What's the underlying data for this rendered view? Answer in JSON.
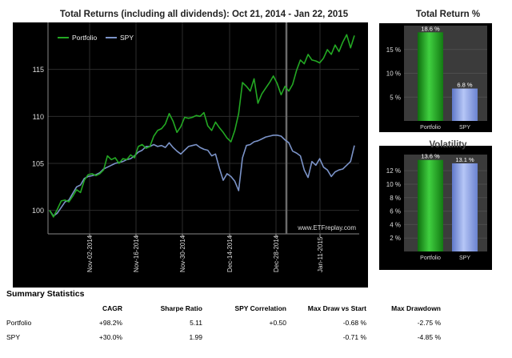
{
  "chart_data": [
    {
      "type": "line",
      "title": "Total Returns (including all dividends): Oct 21, 2014 - Jan 22, 2015",
      "xlabel": "",
      "ylabel": "",
      "x_tick_labels": [
        "Nov-02-2014",
        "Nov-16-2014",
        "Nov-30-2014",
        "Dec-14-2014",
        "Dec-28-2014",
        "Jan-11-2015"
      ],
      "y_ticks": [
        100,
        105,
        110,
        115
      ],
      "ylim": [
        97.5,
        120
      ],
      "grid": true,
      "legend": "top-left",
      "watermark": "www.ETFreplay.com",
      "series": [
        {
          "name": "Portfolio",
          "color": "#23a823",
          "values": [
            100.0,
            99.3,
            100.1,
            101.0,
            101.1,
            100.9,
            101.5,
            102.2,
            101.9,
            103.2,
            103.8,
            103.9,
            103.7,
            103.9,
            104.3,
            105.8,
            105.4,
            105.6,
            105.0,
            105.5,
            105.4,
            105.9,
            105.6,
            106.8,
            107.0,
            106.6,
            106.8,
            107.9,
            108.5,
            108.7,
            109.2,
            110.3,
            109.5,
            108.3,
            108.9,
            109.9,
            109.8,
            109.9,
            110.1,
            110.0,
            110.4,
            109.0,
            108.5,
            109.4,
            108.8,
            108.3,
            107.7,
            107.3,
            108.5,
            110.3,
            113.6,
            113.2,
            112.7,
            114.0,
            111.4,
            112.4,
            113.0,
            113.6,
            114.3,
            113.5,
            112.3,
            113.2,
            112.7,
            113.4,
            114.9,
            116.0,
            115.6,
            116.6,
            116.0,
            115.9,
            115.7,
            116.2,
            117.1,
            116.6,
            117.6,
            116.9,
            117.9,
            118.7,
            117.3,
            118.6
          ]
        },
        {
          "name": "SPY",
          "color": "#7b93c8",
          "values": [
            100.0,
            99.4,
            99.7,
            100.3,
            100.9,
            101.1,
            101.8,
            102.5,
            102.7,
            103.4,
            103.6,
            103.7,
            103.8,
            104.0,
            104.4,
            104.6,
            104.8,
            105.0,
            105.1,
            105.2,
            105.4,
            105.5,
            105.8,
            106.2,
            106.4,
            106.8,
            106.8,
            107.0,
            106.8,
            106.9,
            106.7,
            107.2,
            106.7,
            106.3,
            106.0,
            106.4,
            106.8,
            106.9,
            107.0,
            106.7,
            106.5,
            106.4,
            105.8,
            106.0,
            104.5,
            103.2,
            103.9,
            103.6,
            103.1,
            102.1,
            105.6,
            106.9,
            107.0,
            107.3,
            107.4,
            107.6,
            107.8,
            107.9,
            108.0,
            108.0,
            107.9,
            107.5,
            107.2,
            106.3,
            106.1,
            105.8,
            104.3,
            103.5,
            105.2,
            104.8,
            105.5,
            104.6,
            104.3,
            103.6,
            104.1,
            104.3,
            104.4,
            104.8,
            105.2,
            106.9
          ]
        }
      ]
    },
    {
      "type": "bar",
      "title": "Total Return %",
      "categories": [
        "Portfolio",
        "SPY"
      ],
      "values": [
        18.6,
        6.8
      ],
      "value_labels": [
        "18.6 %",
        "6.8 %"
      ],
      "y_tick_labels": [
        "5 %",
        "10 %",
        "15 %"
      ],
      "ylim": [
        0,
        20
      ],
      "colors": [
        "#229c22",
        "#8a9fe0"
      ]
    },
    {
      "type": "bar",
      "title": "Volatility",
      "categories": [
        "Portfolio",
        "SPY"
      ],
      "values": [
        13.6,
        13.1
      ],
      "value_labels": [
        "13.6 %",
        "13.1 %"
      ],
      "y_tick_labels": [
        "2 %",
        "4 %",
        "6 %",
        "8 %",
        "10 %",
        "12 %"
      ],
      "ylim": [
        0,
        14.4
      ],
      "colors": [
        "#229c22",
        "#8a9fe0"
      ]
    }
  ],
  "summary": {
    "heading": "Summary Statistics",
    "columns": [
      "",
      "CAGR",
      "Sharpe Ratio",
      "SPY Correlation",
      "Max Draw vs Start",
      "Max Drawdown"
    ],
    "rows": [
      [
        "Portfolio",
        "+98.2%",
        "5.11",
        "+0.50",
        "-0.68 %",
        "-2.75 %"
      ],
      [
        "SPY",
        "+30.0%",
        "1.99",
        "",
        "-0.71 %",
        "-4.85 %"
      ]
    ]
  }
}
